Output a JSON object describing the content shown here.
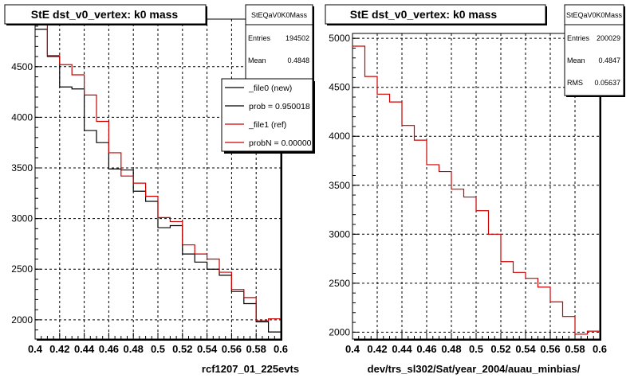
{
  "chart_data": [
    {
      "type": "step",
      "title": "StE dst_v0_vertex: k0 mass",
      "xlabel": "rcf1207_01_225evts",
      "ylabel": "",
      "xlim": [
        0.4,
        0.6
      ],
      "ylim": [
        1810,
        4970
      ],
      "xticks": [
        "0.4",
        "0.42",
        "0.44",
        "0.46",
        "0.48",
        "0.5",
        "0.52",
        "0.54",
        "0.56",
        "0.58",
        "0.6"
      ],
      "yticks": [
        2000,
        2500,
        3000,
        3500,
        4000,
        4500
      ],
      "grid": true,
      "bin_edges": [
        0.4,
        0.41,
        0.42,
        0.43,
        0.44,
        0.45,
        0.46,
        0.47,
        0.48,
        0.49,
        0.5,
        0.51,
        0.52,
        0.53,
        0.54,
        0.55,
        0.56,
        0.57,
        0.58,
        0.59,
        0.6
      ],
      "series": [
        {
          "name": "_file0 (new)",
          "color": "#000000",
          "values": [
            4870,
            4600,
            4300,
            4280,
            3870,
            3750,
            3490,
            3480,
            3270,
            3170,
            2910,
            2930,
            2650,
            2570,
            2500,
            2440,
            2280,
            2160,
            1980,
            1880
          ]
        },
        {
          "name": "_file1 (ref)",
          "color": "#cc0000",
          "values": [
            4930,
            4610,
            4520,
            4420,
            4220,
            3960,
            3650,
            3420,
            3350,
            3220,
            3010,
            2970,
            2740,
            2650,
            2600,
            2470,
            2300,
            2220,
            1990,
            2010
          ]
        }
      ],
      "stats": {
        "title": "StEQaV0K0Mass",
        "rows": [
          [
            "Entries",
            "194502"
          ],
          [
            "Mean",
            "0.4848"
          ]
        ]
      },
      "legend": [
        "_file0 (new)",
        "prob = 0.950018",
        "_file1 (ref)",
        "probN = 0.00000"
      ],
      "legend_position": "top-right"
    },
    {
      "type": "step",
      "title": "StE dst_v0_vertex: k0 mass",
      "xlabel": "dev/trs_sl302/Sat/year_2004/auau_minbias/",
      "ylabel": "",
      "xlim": [
        0.4,
        0.6
      ],
      "ylim": [
        1930,
        5050
      ],
      "xticks": [
        "0.4",
        "0.42",
        "0.44",
        "0.46",
        "0.48",
        "0.5",
        "0.52",
        "0.54",
        "0.56",
        "0.58",
        "0.6"
      ],
      "yticks": [
        2000,
        2500,
        3000,
        3500,
        4000,
        4500,
        5000
      ],
      "grid": true,
      "bin_edges": [
        0.4,
        0.41,
        0.42,
        0.43,
        0.44,
        0.45,
        0.46,
        0.47,
        0.48,
        0.49,
        0.5,
        0.51,
        0.52,
        0.53,
        0.54,
        0.55,
        0.56,
        0.57,
        0.58,
        0.59,
        0.6
      ],
      "series": [
        {
          "name": "",
          "color": "#cc0000",
          "values": [
            4920,
            4610,
            4430,
            4350,
            4110,
            3960,
            3710,
            3640,
            3460,
            3380,
            3240,
            3000,
            2720,
            2610,
            2550,
            2460,
            2310,
            2160,
            1980,
            2010
          ]
        }
      ],
      "stats": {
        "title": "StEQaV0K0Mass",
        "rows": [
          [
            "Entries",
            "200029"
          ],
          [
            "Mean",
            "0.4847"
          ],
          [
            "RMS",
            "0.05637"
          ]
        ]
      }
    }
  ]
}
